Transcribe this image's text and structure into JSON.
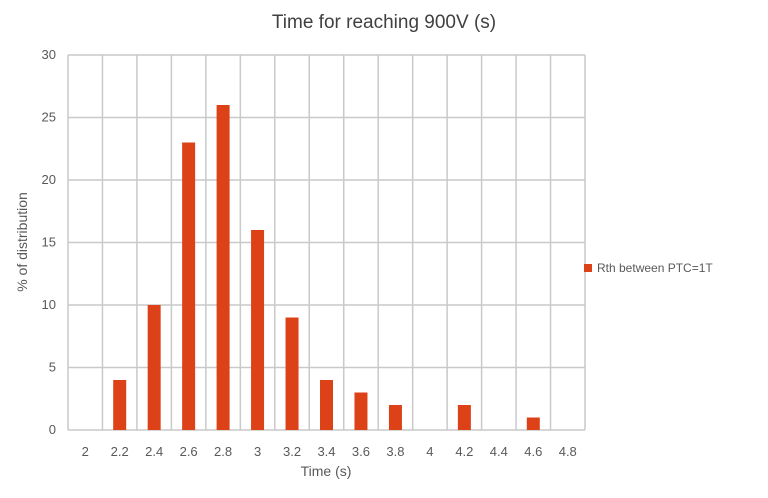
{
  "chart_data": {
    "type": "bar",
    "title": "Time for reaching 900V (s)",
    "xlabel": "Time (s)",
    "ylabel": "% of distribution",
    "categories": [
      "2",
      "2.2",
      "2.4",
      "2.6",
      "2.8",
      "3",
      "3.2",
      "3.4",
      "3.6",
      "3.8",
      "4",
      "4.2",
      "4.4",
      "4.6",
      "4.8"
    ],
    "series": [
      {
        "name": "Rth between PTC=1T",
        "color": "#DC4118",
        "values": [
          0,
          4,
          10,
          23,
          26,
          16,
          9,
          4,
          3,
          2,
          0,
          2,
          0,
          1,
          0
        ]
      }
    ],
    "ylim": [
      0,
      30
    ],
    "yticks": [
      "0",
      "5",
      "10",
      "15",
      "20",
      "25",
      "30"
    ],
    "grid": true,
    "legend_position": "right"
  }
}
